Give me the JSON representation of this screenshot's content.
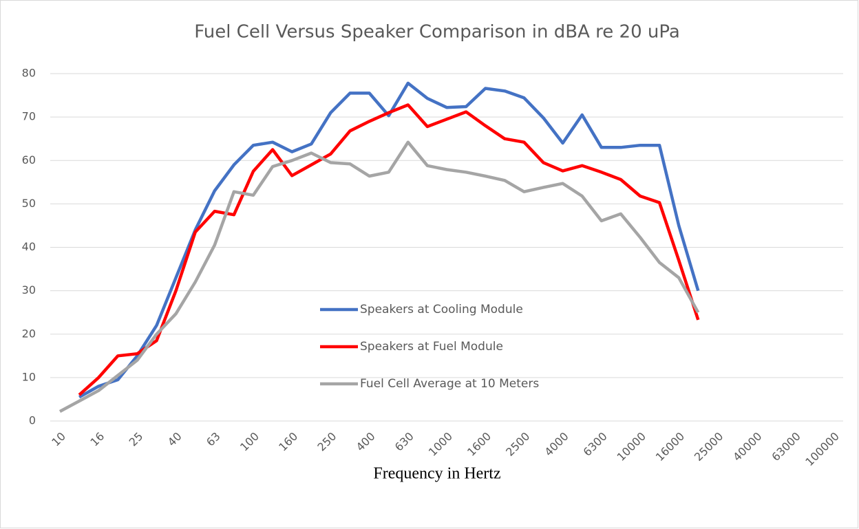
{
  "chart_data": {
    "type": "line",
    "title": "Fuel Cell Versus Speaker Comparison in dBA re 20 uPa",
    "x_label": "Frequency in Hertz",
    "categories": [
      "10",
      null,
      "16",
      null,
      "25",
      null,
      "40",
      null,
      "63",
      null,
      "100",
      null,
      "160",
      null,
      "250",
      null,
      "400",
      null,
      "630",
      null,
      "1000",
      null,
      "1600",
      null,
      "2500",
      null,
      "4000",
      null,
      "6300",
      null,
      "10000",
      null,
      "16000",
      null,
      "25000",
      null,
      "40000",
      null,
      "63000",
      null,
      "100000"
    ],
    "series": [
      {
        "name": "Speakers at Cooling Module",
        "color": "#4472c4",
        "values": [
          null,
          5.5,
          8,
          9.5,
          15,
          22,
          33,
          44,
          53,
          59,
          63.5,
          64.2,
          62,
          63.8,
          71,
          75.5,
          75.5,
          70.3,
          77.8,
          74.3,
          72.2,
          72.4,
          76.6,
          76,
          74.4,
          69.8,
          64,
          70.5,
          63,
          63,
          63.5,
          63.5,
          45,
          30,
          null,
          null,
          null,
          null,
          null,
          null,
          null
        ]
      },
      {
        "name": "Speakers at Fuel Module",
        "color": "#ff0000",
        "values": [
          null,
          6,
          10,
          15,
          15.5,
          18.5,
          30,
          43.5,
          48.3,
          47.5,
          57.5,
          62.5,
          56.5,
          59,
          61.5,
          66.8,
          69,
          71,
          72.8,
          67.8,
          69.5,
          71.2,
          68,
          65,
          64.2,
          59.5,
          57.6,
          58.8,
          57.3,
          55.6,
          51.8,
          50.3,
          37,
          23.3,
          null,
          null,
          null,
          null,
          null,
          null,
          null
        ]
      },
      {
        "name": "Fuel Cell Average at 10 Meters",
        "color": "#a5a5a5",
        "values": [
          2.2,
          4.6,
          7,
          10.5,
          14,
          20,
          24.7,
          32,
          40.5,
          52.8,
          52,
          58.6,
          60,
          61.7,
          59.5,
          59.2,
          56.4,
          57.3,
          64.2,
          58.8,
          57.9,
          57.3,
          56.4,
          55.4,
          52.8,
          53.8,
          54.7,
          51.8,
          46.1,
          47.7,
          42.3,
          36.5,
          33,
          25,
          null,
          null,
          null,
          null,
          null,
          null,
          null
        ]
      }
    ],
    "ylim": [
      0,
      80
    ],
    "yticks": [
      0,
      10,
      20,
      30,
      40,
      50,
      60,
      70,
      80
    ],
    "grid": true,
    "legend": "center"
  }
}
